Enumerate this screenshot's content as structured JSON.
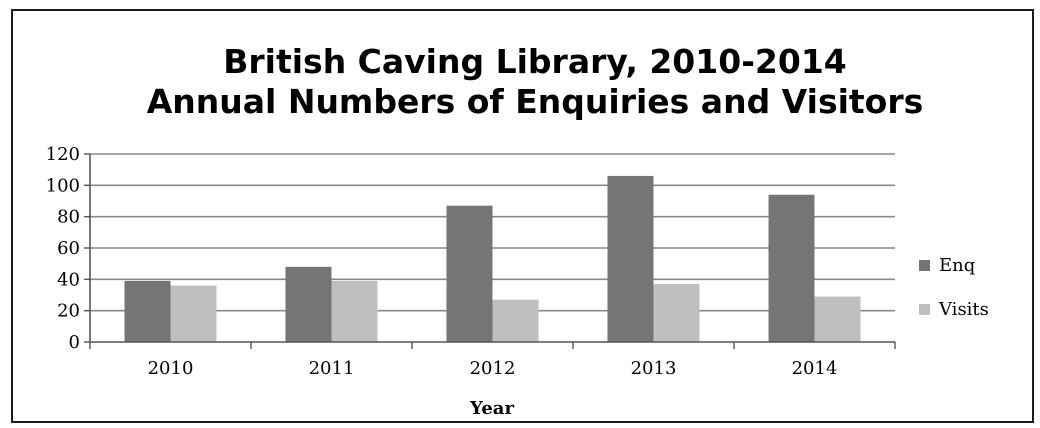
{
  "chart_data": {
    "type": "bar",
    "title_lines": [
      "British Caving Library, 2010-2014",
      "Annual Numbers of Enquiries and Visitors"
    ],
    "xlabel": "Year",
    "ylabel": "",
    "categories": [
      "2010",
      "2011",
      "2012",
      "2013",
      "2014"
    ],
    "series": [
      {
        "name": "Enq",
        "color": "#757575",
        "values": [
          39,
          48,
          87,
          106,
          94
        ]
      },
      {
        "name": "Visits",
        "color": "#bfbfbf",
        "values": [
          36,
          39,
          27,
          37,
          29
        ]
      }
    ],
    "ylim": [
      0,
      120
    ],
    "yticks": [
      0,
      20,
      40,
      60,
      80,
      100,
      120
    ],
    "grid": true,
    "legend": "right"
  }
}
